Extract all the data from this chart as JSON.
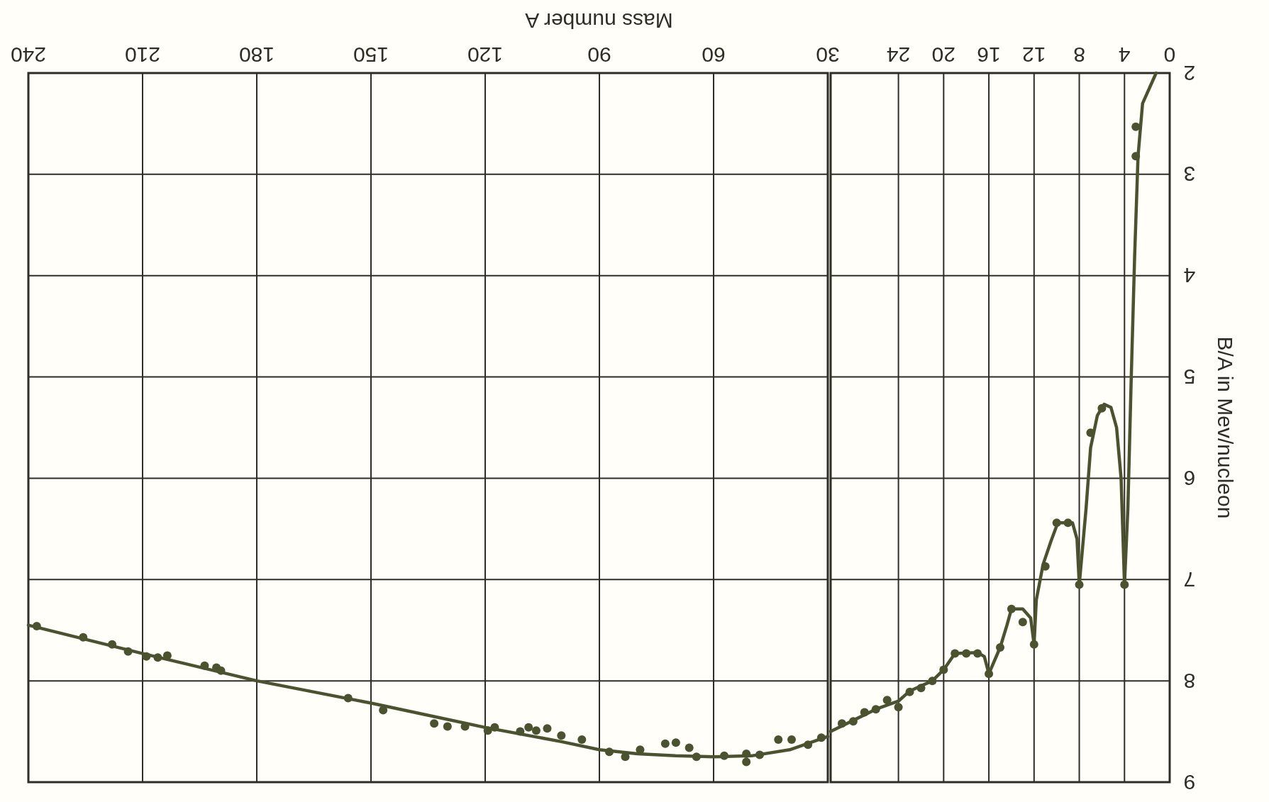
{
  "chart_data": [
    {
      "type": "scatter",
      "xlabel": "Mass number A",
      "xlim": [
        240,
        30
      ],
      "xticks": [
        240,
        210,
        180,
        150,
        120,
        90,
        60,
        30
      ],
      "ylim": [
        9,
        2
      ],
      "yticks": [
        9,
        8,
        7,
        6,
        5,
        4,
        3,
        2
      ],
      "tick_labels": "x",
      "grid": true,
      "line_style": "solid",
      "series": [
        {
          "type": "scatter",
          "marker": "circle",
          "color": "#4a5230",
          "x": [
            237.8,
            225.6,
            218,
            213.8,
            209,
            206,
            203.5,
            193.7,
            190.6,
            189.4,
            156,
            146.8,
            133.4,
            129.9,
            125.3,
            119.3,
            117.5,
            110.8,
            108.6,
            106.6,
            103.7,
            100,
            94.6,
            87.4,
            83.2,
            79.3,
            72.7,
            69.9,
            66.4,
            64.5,
            57.2,
            51.4,
            51.4,
            47.9,
            43,
            39.5,
            35.2,
            31.7
          ],
          "values": [
            7.46,
            7.57,
            7.64,
            7.71,
            7.76,
            7.77,
            7.75,
            7.85,
            7.87,
            7.9,
            8.17,
            8.29,
            8.42,
            8.45,
            8.45,
            8.49,
            8.46,
            8.5,
            8.46,
            8.49,
            8.47,
            8.54,
            8.58,
            8.7,
            8.75,
            8.68,
            8.62,
            8.61,
            8.66,
            8.75,
            8.74,
            8.72,
            8.8,
            8.73,
            8.58,
            8.58,
            8.63,
            8.56
          ]
        },
        {
          "type": "line",
          "marker": "none",
          "color": "#4a5230",
          "x": [
            30,
            40,
            50,
            60,
            70,
            80,
            90,
            100,
            120,
            150,
            180,
            210,
            240
          ],
          "values": [
            8.55,
            8.68,
            8.74,
            8.75,
            8.74,
            8.72,
            8.68,
            8.6,
            8.46,
            8.22,
            8.0,
            7.73,
            7.45
          ]
        }
      ]
    },
    {
      "type": "scatter",
      "ylabel": "B/A in Mev/nucleon",
      "xlim": [
        30,
        0
      ],
      "xticks": [
        24,
        20,
        16,
        12,
        8,
        4,
        0
      ],
      "ylim": [
        9,
        2
      ],
      "yticks": [
        9,
        8,
        7,
        6,
        5,
        4,
        3,
        2
      ],
      "grid": true,
      "line_style": "solid",
      "series": [
        {
          "type": "scatter",
          "marker": "circle",
          "color": "#4a5230",
          "x": [
            3,
            3,
            4,
            6,
            7,
            8,
            9,
            10,
            11,
            12,
            13,
            14,
            15,
            16,
            17,
            18,
            19,
            20,
            21,
            22,
            23,
            24,
            25,
            26,
            27,
            28,
            29
          ],
          "values": [
            2.53,
            2.82,
            7.05,
            5.31,
            5.55,
            7.05,
            6.44,
            6.44,
            6.87,
            7.64,
            7.42,
            7.29,
            7.67,
            7.93,
            7.73,
            7.73,
            7.73,
            7.89,
            8.0,
            8.07,
            8.11,
            8.26,
            8.19,
            8.28,
            8.31,
            8.4,
            8.42
          ]
        },
        {
          "type": "line",
          "marker": "none",
          "color": "#4a5230",
          "x": [
            1.2,
            2.4,
            2.8,
            3.1,
            3.4,
            3.7,
            4,
            4.3,
            4.7,
            5.2,
            5.8,
            6.4,
            7,
            7.4,
            8,
            8.2,
            8.6,
            9.9,
            10.5,
            11.2,
            11.8,
            12,
            12.3,
            13,
            14,
            14.4,
            15,
            16,
            16.4,
            17,
            19,
            20,
            21,
            23,
            24,
            26,
            28,
            30
          ],
          "values": [
            2,
            2.3,
            2.82,
            3.8,
            5.0,
            6.3,
            7.05,
            6.0,
            5.5,
            5.3,
            5.27,
            5.38,
            5.7,
            6.3,
            7.05,
            6.6,
            6.44,
            6.44,
            6.62,
            6.85,
            7.2,
            7.64,
            7.38,
            7.29,
            7.29,
            7.45,
            7.67,
            7.93,
            7.76,
            7.72,
            7.73,
            7.89,
            8.0,
            8.1,
            8.2,
            8.28,
            8.39,
            8.5
          ]
        }
      ]
    }
  ]
}
